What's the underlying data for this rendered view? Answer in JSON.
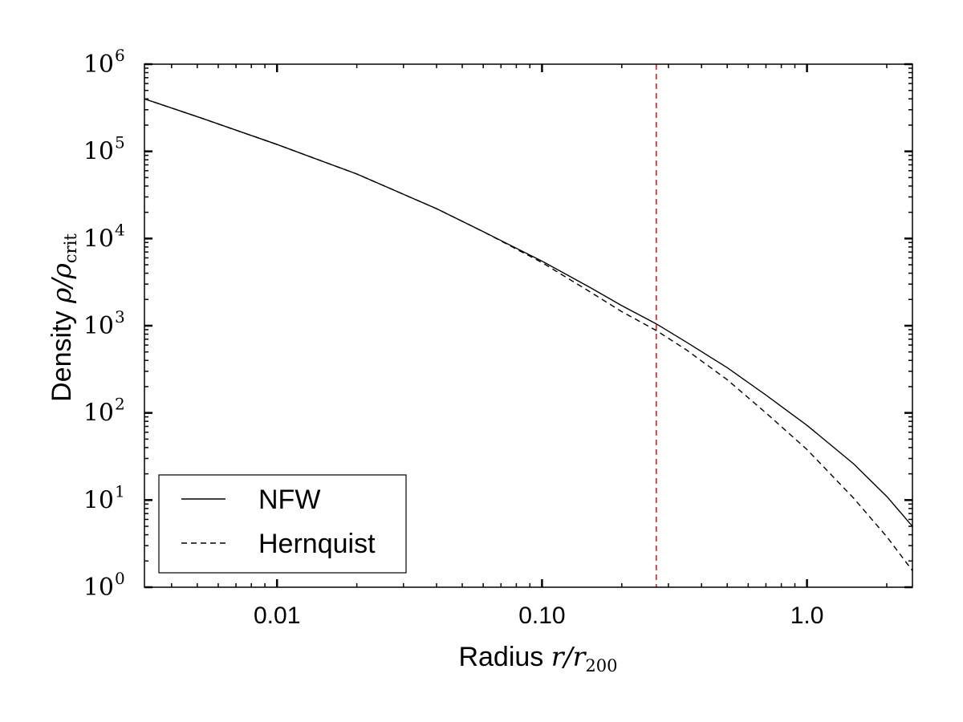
{
  "chart_data": {
    "type": "line",
    "title": "",
    "xlabel": {
      "prefix": "Radius ",
      "var": "r",
      "slash": "/",
      "var2": "r",
      "sub": "200"
    },
    "ylabel": {
      "prefix": "Density ",
      "var": "ρ",
      "slash": "/",
      "var2": "ρ",
      "sub": "crit"
    },
    "xscale": "log",
    "yscale": "log",
    "xlim": [
      0.00316,
      2.5
    ],
    "ylim": [
      1,
      1000000
    ],
    "grid": false,
    "legend_position": "lower-left",
    "x_ticks": [
      {
        "value": 0.01,
        "label": "0.01"
      },
      {
        "value": 0.1,
        "label": "0.10"
      },
      {
        "value": 1.0,
        "label": "1.0"
      }
    ],
    "y_ticks": [
      {
        "value": 1,
        "base": "10",
        "exp": "0"
      },
      {
        "value": 10,
        "base": "10",
        "exp": "1"
      },
      {
        "value": 100,
        "base": "10",
        "exp": "2"
      },
      {
        "value": 1000,
        "base": "10",
        "exp": "3"
      },
      {
        "value": 10000,
        "base": "10",
        "exp": "4"
      },
      {
        "value": 100000,
        "base": "10",
        "exp": "5"
      },
      {
        "value": 1000000,
        "base": "10",
        "exp": "6"
      }
    ],
    "series": [
      {
        "name": "NFW",
        "style": "solid",
        "color": "#000000",
        "x": [
          0.00316,
          0.005,
          0.01,
          0.02,
          0.04,
          0.06,
          0.1,
          0.15,
          0.2,
          0.27,
          0.35,
          0.5,
          0.7,
          1.0,
          1.5,
          2.0,
          2.5
        ],
        "y": [
          400000,
          250000,
          120000,
          55000,
          22000,
          12000,
          5500,
          2800,
          1700,
          1050,
          650,
          330,
          160,
          72,
          26,
          11,
          5
        ]
      },
      {
        "name": "Hernquist",
        "style": "dashed",
        "color": "#000000",
        "x": [
          0.00316,
          0.005,
          0.01,
          0.02,
          0.04,
          0.06,
          0.1,
          0.15,
          0.2,
          0.27,
          0.35,
          0.5,
          0.7,
          1.0,
          1.5,
          2.0,
          2.5
        ],
        "y": [
          400000,
          250000,
          120000,
          55000,
          22000,
          12000,
          5300,
          2500,
          1450,
          880,
          530,
          240,
          100,
          38,
          10.5,
          3.8,
          1.55
        ]
      }
    ],
    "vline": {
      "x": 0.27,
      "color": "#dd0000",
      "style": "dashed"
    }
  }
}
